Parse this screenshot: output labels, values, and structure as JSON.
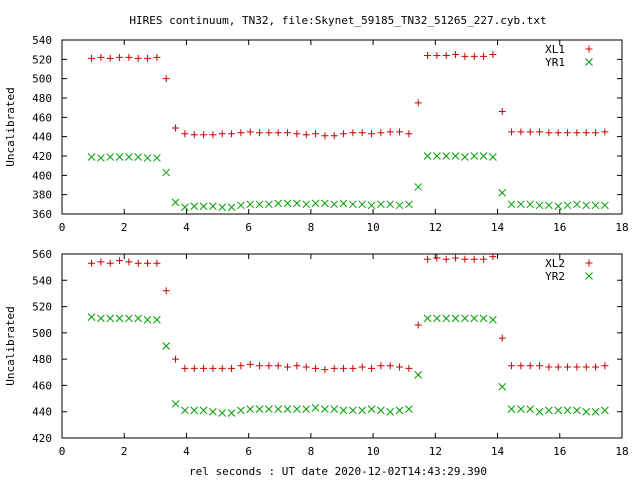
{
  "chart_data": {
    "title": "HIRES continuum, TN32, file:Skynet_59185_TN32_51265_227.cyb.txt",
    "xlabel": "rel seconds : UT date 2020-12-02T14:43:29.390",
    "panels": [
      {
        "type": "scatter",
        "ylabel": "Uncalibrated",
        "xlim": [
          0,
          18
        ],
        "ylim": [
          360,
          540
        ],
        "xticks": [
          0,
          2,
          4,
          6,
          8,
          10,
          12,
          14,
          16,
          18
        ],
        "yticks": [
          360,
          380,
          400,
          420,
          440,
          460,
          480,
          500,
          520,
          540
        ],
        "series": [
          {
            "name": "XL1",
            "marker": "plus",
            "color": "#cc0000",
            "x": [
              0.95,
              1.25,
              1.55,
              1.85,
              2.15,
              2.45,
              2.75,
              3.05,
              3.35,
              3.65,
              3.95,
              4.25,
              4.55,
              4.85,
              5.15,
              5.45,
              5.75,
              6.05,
              6.35,
              6.65,
              6.95,
              7.25,
              7.55,
              7.85,
              8.15,
              8.45,
              8.75,
              9.05,
              9.35,
              9.65,
              9.95,
              10.25,
              10.55,
              10.85,
              11.15,
              11.45,
              11.75,
              12.05,
              12.35,
              12.65,
              12.95,
              13.25,
              13.55,
              13.85,
              14.15,
              14.45,
              14.75,
              15.05,
              15.35,
              15.65,
              15.95,
              16.25,
              16.55,
              16.85,
              17.15,
              17.45
            ],
            "y": [
              521,
              522,
              521,
              522,
              522,
              521,
              521,
              522,
              500,
              449,
              443,
              442,
              442,
              442,
              443,
              443,
              444,
              445,
              444,
              444,
              444,
              444,
              443,
              442,
              443,
              441,
              441,
              443,
              444,
              444,
              443,
              444,
              445,
              445,
              443,
              475,
              524,
              524,
              524,
              525,
              523,
              523,
              523,
              525,
              466,
              445,
              445,
              445,
              445,
              444,
              444,
              444,
              444,
              444,
              444,
              445
            ]
          },
          {
            "name": "YR1",
            "marker": "cross",
            "color": "#00a000",
            "x": [
              0.95,
              1.25,
              1.55,
              1.85,
              2.15,
              2.45,
              2.75,
              3.05,
              3.35,
              3.65,
              3.95,
              4.25,
              4.55,
              4.85,
              5.15,
              5.45,
              5.75,
              6.05,
              6.35,
              6.65,
              6.95,
              7.25,
              7.55,
              7.85,
              8.15,
              8.45,
              8.75,
              9.05,
              9.35,
              9.65,
              9.95,
              10.25,
              10.55,
              10.85,
              11.15,
              11.45,
              11.75,
              12.05,
              12.35,
              12.65,
              12.95,
              13.25,
              13.55,
              13.85,
              14.15,
              14.45,
              14.75,
              15.05,
              15.35,
              15.65,
              15.95,
              16.25,
              16.55,
              16.85,
              17.15,
              17.45
            ],
            "y": [
              419,
              418,
              419,
              419,
              419,
              419,
              418,
              418,
              403,
              372,
              367,
              368,
              368,
              368,
              367,
              367,
              369,
              370,
              370,
              370,
              371,
              371,
              371,
              370,
              371,
              371,
              370,
              371,
              370,
              370,
              369,
              370,
              370,
              369,
              370,
              388,
              420,
              420,
              420,
              420,
              419,
              420,
              420,
              419,
              382,
              370,
              370,
              370,
              369,
              369,
              368,
              369,
              370,
              369,
              369,
              369
            ]
          }
        ]
      },
      {
        "type": "scatter",
        "ylabel": "Uncalibrated",
        "xlim": [
          0,
          18
        ],
        "ylim": [
          420,
          560
        ],
        "xticks": [
          0,
          2,
          4,
          6,
          8,
          10,
          12,
          14,
          16,
          18
        ],
        "yticks": [
          420,
          440,
          460,
          480,
          500,
          520,
          540,
          560
        ],
        "series": [
          {
            "name": "XL2",
            "marker": "plus",
            "color": "#cc0000",
            "x": [
              0.95,
              1.25,
              1.55,
              1.85,
              2.15,
              2.45,
              2.75,
              3.05,
              3.35,
              3.65,
              3.95,
              4.25,
              4.55,
              4.85,
              5.15,
              5.45,
              5.75,
              6.05,
              6.35,
              6.65,
              6.95,
              7.25,
              7.55,
              7.85,
              8.15,
              8.45,
              8.75,
              9.05,
              9.35,
              9.65,
              9.95,
              10.25,
              10.55,
              10.85,
              11.15,
              11.45,
              11.75,
              12.05,
              12.35,
              12.65,
              12.95,
              13.25,
              13.55,
              13.85,
              14.15,
              14.45,
              14.75,
              15.05,
              15.35,
              15.65,
              15.95,
              16.25,
              16.55,
              16.85,
              17.15,
              17.45
            ],
            "y": [
              553,
              554,
              553,
              555,
              554,
              553,
              553,
              553,
              532,
              480,
              473,
              473,
              473,
              473,
              473,
              473,
              475,
              476,
              475,
              475,
              475,
              474,
              475,
              474,
              473,
              472,
              473,
              473,
              473,
              474,
              473,
              475,
              475,
              474,
              473,
              506,
              556,
              557,
              556,
              557,
              556,
              556,
              556,
              558,
              496,
              475,
              475,
              475,
              475,
              474,
              474,
              474,
              474,
              474,
              474,
              475
            ]
          },
          {
            "name": "YR2",
            "marker": "cross",
            "color": "#00a000",
            "x": [
              0.95,
              1.25,
              1.55,
              1.85,
              2.15,
              2.45,
              2.75,
              3.05,
              3.35,
              3.65,
              3.95,
              4.25,
              4.55,
              4.85,
              5.15,
              5.45,
              5.75,
              6.05,
              6.35,
              6.65,
              6.95,
              7.25,
              7.55,
              7.85,
              8.15,
              8.45,
              8.75,
              9.05,
              9.35,
              9.65,
              9.95,
              10.25,
              10.55,
              10.85,
              11.15,
              11.45,
              11.75,
              12.05,
              12.35,
              12.65,
              12.95,
              13.25,
              13.55,
              13.85,
              14.15,
              14.45,
              14.75,
              15.05,
              15.35,
              15.65,
              15.95,
              16.25,
              16.55,
              16.85,
              17.15,
              17.45
            ],
            "y": [
              512,
              511,
              511,
              511,
              511,
              511,
              510,
              510,
              490,
              446,
              441,
              441,
              441,
              440,
              439,
              439,
              441,
              442,
              442,
              442,
              442,
              442,
              442,
              442,
              443,
              442,
              442,
              441,
              441,
              441,
              442,
              441,
              440,
              441,
              442,
              468,
              511,
              511,
              511,
              511,
              511,
              511,
              511,
              510,
              459,
              442,
              442,
              442,
              440,
              441,
              441,
              441,
              441,
              440,
              440,
              441
            ]
          }
        ]
      }
    ]
  }
}
